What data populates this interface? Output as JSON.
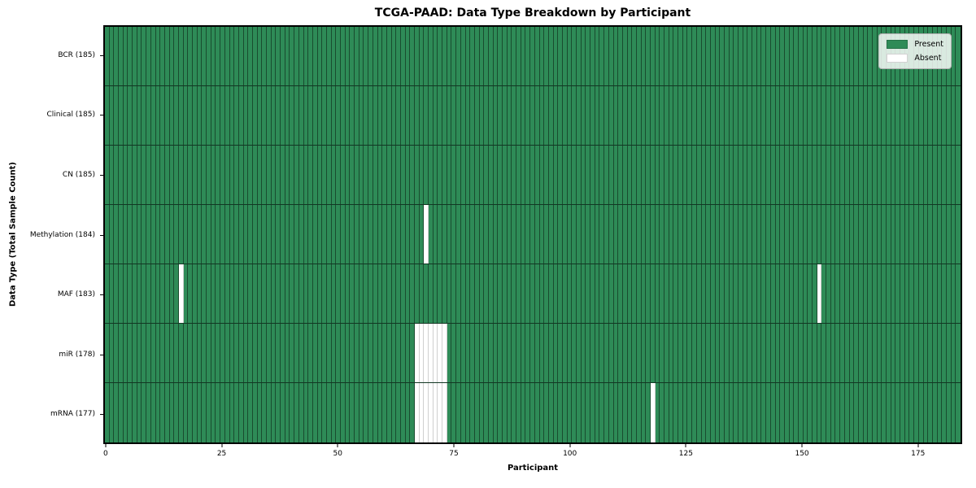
{
  "chart_data": {
    "type": "heatmap",
    "title": "TCGA-PAAD: Data Type Breakdown by Participant",
    "xlabel": "Participant",
    "ylabel": "Data Type (Total Sample Count)",
    "n_participants": 185,
    "xlim": [
      -0.5,
      184.5
    ],
    "x_ticks": [
      0,
      25,
      50,
      75,
      100,
      125,
      150,
      175
    ],
    "grid": false,
    "legend_position": "upper right",
    "legend_items": [
      {
        "label": "Present",
        "color": "#2e8b57"
      },
      {
        "label": "Absent",
        "color": "#ffffff"
      }
    ],
    "cell_colors": {
      "present": "#2e8b57",
      "absent": "#ffffff"
    },
    "rows": [
      {
        "data_type": "BCR",
        "label": "BCR (185)",
        "total_samples": 185,
        "absent_participants": []
      },
      {
        "data_type": "Clinical",
        "label": "Clinical (185)",
        "total_samples": 185,
        "absent_participants": []
      },
      {
        "data_type": "CN",
        "label": "CN (185)",
        "total_samples": 185,
        "absent_participants": []
      },
      {
        "data_type": "Methylation",
        "label": "Methylation (184)",
        "total_samples": 184,
        "absent_participants": [
          69
        ]
      },
      {
        "data_type": "MAF",
        "label": "MAF (183)",
        "total_samples": 183,
        "absent_participants": [
          16,
          154
        ]
      },
      {
        "data_type": "miR",
        "label": "miR (178)",
        "total_samples": 178,
        "absent_participants": [
          67,
          68,
          69,
          70,
          71,
          72,
          73
        ]
      },
      {
        "data_type": "mRNA",
        "label": "mRNA (177)",
        "total_samples": 177,
        "absent_participants": [
          67,
          68,
          69,
          70,
          71,
          72,
          73,
          118
        ]
      }
    ]
  }
}
